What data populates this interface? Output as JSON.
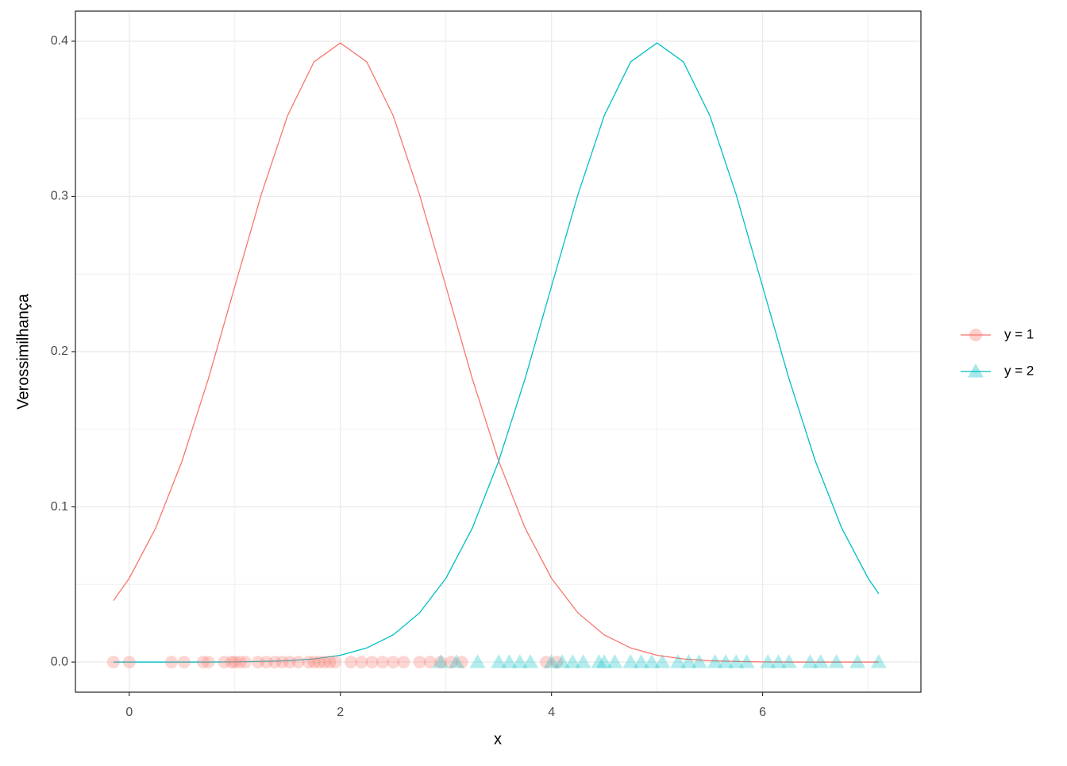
{
  "chart_data": {
    "type": "line",
    "xlabel": "x",
    "ylabel": "Verossimilhança",
    "xlim": [
      -0.51,
      7.5
    ],
    "ylim": [
      -0.0194,
      0.4194
    ],
    "xticks": [
      0,
      2,
      4,
      6
    ],
    "yticks": [
      {
        "value": 0,
        "label": "0.0"
      },
      0.1,
      0.2,
      0.3,
      0.4
    ],
    "grid": true,
    "legend": "right",
    "series": [
      {
        "name": "y = 1",
        "color": "#F8766D",
        "marker": "circle",
        "x": [
          -0.15,
          0,
          0.25,
          0.5,
          0.75,
          1,
          1.25,
          1.5,
          1.75,
          2,
          2.25,
          2.5,
          2.75,
          3,
          3.25,
          3.5,
          3.75,
          4,
          4.25,
          4.5,
          4.75,
          5,
          5.25,
          5.5,
          5.75,
          6,
          6.25,
          6.5,
          6.75,
          7,
          7.1
        ],
        "values": [
          0.0396,
          0.054,
          0.0863,
          0.1295,
          0.1826,
          0.242,
          0.3011,
          0.3521,
          0.3867,
          0.3989,
          0.3867,
          0.3521,
          0.3011,
          0.242,
          0.1826,
          0.1295,
          0.0863,
          0.054,
          0.0317,
          0.0175,
          0.0091,
          0.0044,
          0.002,
          0.0009,
          0.0004,
          0.0001,
          0,
          0,
          0,
          0,
          0
        ],
        "points": {
          "x": [
            -0.15,
            0,
            0.4,
            0.52,
            0.7,
            0.75,
            0.9,
            0.97,
            1.0,
            1.05,
            1.1,
            1.22,
            1.3,
            1.38,
            1.45,
            1.52,
            1.6,
            1.7,
            1.75,
            1.8,
            1.85,
            1.9,
            1.95,
            2.1,
            2.2,
            2.3,
            2.4,
            2.5,
            2.6,
            2.75,
            2.85,
            2.95,
            3.05,
            3.15,
            3.95,
            4.05
          ],
          "values": [
            0,
            0,
            0,
            0,
            0,
            0,
            0,
            0,
            0,
            0,
            0,
            0,
            0,
            0,
            0,
            0,
            0,
            0,
            0,
            0,
            0,
            0,
            0,
            0,
            0,
            0,
            0,
            0,
            0,
            0,
            0,
            0,
            0,
            0,
            0,
            0
          ]
        }
      },
      {
        "name": "y = 2",
        "color": "#00BFC4",
        "marker": "triangle",
        "x": [
          -0.15,
          0,
          0.25,
          0.5,
          0.75,
          1,
          1.25,
          1.5,
          1.75,
          2,
          2.25,
          2.5,
          2.75,
          3,
          3.25,
          3.5,
          3.75,
          4,
          4.25,
          4.5,
          4.75,
          5,
          5.25,
          5.5,
          5.75,
          6,
          6.25,
          6.5,
          6.75,
          7,
          7.1
        ],
        "values": [
          0,
          0,
          0,
          0,
          0,
          0.0001,
          0.0004,
          0.0009,
          0.002,
          0.0044,
          0.0091,
          0.0175,
          0.0317,
          0.054,
          0.0863,
          0.1295,
          0.1826,
          0.242,
          0.3011,
          0.3521,
          0.3867,
          0.3989,
          0.3867,
          0.3521,
          0.3011,
          0.242,
          0.1826,
          0.1295,
          0.0863,
          0.054,
          0.044
        ],
        "points": {
          "x": [
            2.95,
            3.1,
            3.3,
            3.5,
            3.6,
            3.7,
            3.8,
            4.0,
            4.1,
            4.2,
            4.3,
            4.45,
            4.5,
            4.6,
            4.75,
            4.85,
            4.95,
            5.05,
            5.2,
            5.3,
            5.4,
            5.55,
            5.65,
            5.75,
            5.85,
            6.05,
            6.15,
            6.25,
            6.45,
            6.55,
            6.7,
            6.9,
            7.1
          ],
          "values": [
            0,
            0,
            0,
            0,
            0,
            0,
            0,
            0,
            0,
            0,
            0,
            0,
            0,
            0,
            0,
            0,
            0,
            0,
            0,
            0,
            0,
            0,
            0,
            0,
            0,
            0,
            0,
            0,
            0,
            0,
            0,
            0,
            0
          ]
        }
      }
    ]
  }
}
